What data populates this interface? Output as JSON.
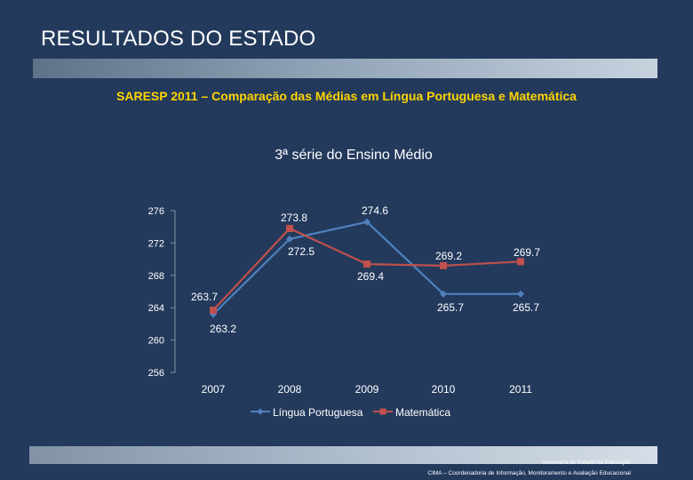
{
  "slide": {
    "title": "RESULTADOS DO ESTADO",
    "subtitle": "SARESP 2011 – Comparação das Médias em Língua Portuguesa e Matemática"
  },
  "footer": {
    "line1": "Secretaria de Estado da Educação",
    "line2": "CIMA – Coordenadoria de Informação, Monitoramento e Avaliação Educacional"
  },
  "colors": {
    "background": "#233a5c",
    "portuguese": "#4f81bd",
    "math": "#c0504d",
    "title_accent": "#ffd400"
  },
  "chart_data": {
    "type": "line",
    "title": "3ª série do Ensino Médio",
    "categories": [
      "2007",
      "2008",
      "2009",
      "2010",
      "2011"
    ],
    "ylim": [
      256,
      276
    ],
    "yticks": [
      "276",
      "272",
      "268",
      "264",
      "260",
      "256"
    ],
    "series": [
      {
        "name": "Língua Portuguesa",
        "values": [
          263.2,
          272.5,
          274.6,
          265.7,
          265.7
        ],
        "labels": [
          "263.2",
          "272.5",
          "274.6",
          "265.7",
          "265.7"
        ]
      },
      {
        "name": "Matemática",
        "values": [
          263.7,
          273.8,
          269.4,
          269.2,
          269.7
        ],
        "labels": [
          "263.7",
          "273.8",
          "269.4",
          "269.2",
          "269.7"
        ]
      }
    ],
    "legend_position": "bottom"
  }
}
